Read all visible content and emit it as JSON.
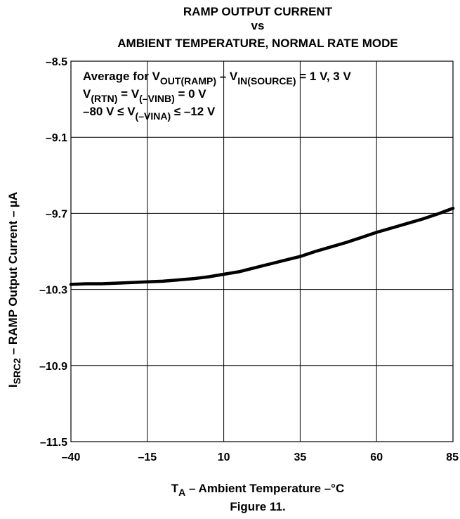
{
  "chart_data": {
    "type": "line",
    "title_lines": [
      "RAMP OUTPUT CURRENT",
      "vs",
      "AMBIENT TEMPERATURE, NORMAL RATE MODE"
    ],
    "xlabel": {
      "main": "T",
      "sub": "A",
      "rest": " – Ambient Temperature  –°C"
    },
    "ylabel": {
      "main": "I",
      "sub": "SRC2",
      "rest": " – RAMP Output Current  – µA"
    },
    "xlim": [
      -40,
      85
    ],
    "ylim": [
      -11.5,
      -8.5
    ],
    "x_ticks": [
      -40,
      -15,
      10,
      35,
      60,
      85
    ],
    "x_tick_labels": [
      "–40",
      "–15",
      "10",
      "35",
      "60",
      "85"
    ],
    "y_ticks": [
      -8.5,
      -9.1,
      -9.7,
      -10.3,
      -10.9,
      -11.5
    ],
    "y_tick_labels": [
      "–8.5",
      "–9.1",
      "–9.7",
      "–10.3",
      "–10.9",
      "–11.5"
    ],
    "grid": true,
    "annotation": {
      "line1": {
        "a": "Average for V",
        "a_sub": "OUT(RAMP)",
        "b": " – V",
        "b_sub": "IN(SOURCE)",
        "c": " = 1 V, 3 V"
      },
      "line2": {
        "a": "V",
        "a_sub": "(RTN)",
        "b": " = V",
        "b_sub": "(–VINB)",
        "c": " = 0 V"
      },
      "line3": {
        "a": "–80 V ≤ V",
        "a_sub": "(–VINA)",
        "b": " ≤ –12 V"
      }
    },
    "series": [
      {
        "x": [
          -40,
          -35,
          -30,
          -25,
          -20,
          -15,
          -10,
          -5,
          0,
          5,
          10,
          15,
          20,
          25,
          30,
          35,
          40,
          45,
          50,
          55,
          60,
          65,
          70,
          75,
          80,
          85
        ],
        "values": [
          -10.26,
          -10.255,
          -10.255,
          -10.25,
          -10.245,
          -10.24,
          -10.235,
          -10.225,
          -10.215,
          -10.2,
          -10.18,
          -10.16,
          -10.13,
          -10.1,
          -10.07,
          -10.04,
          -10.0,
          -9.965,
          -9.93,
          -9.89,
          -9.85,
          -9.815,
          -9.78,
          -9.745,
          -9.705,
          -9.66
        ]
      }
    ]
  },
  "figure_label": "Figure 11."
}
